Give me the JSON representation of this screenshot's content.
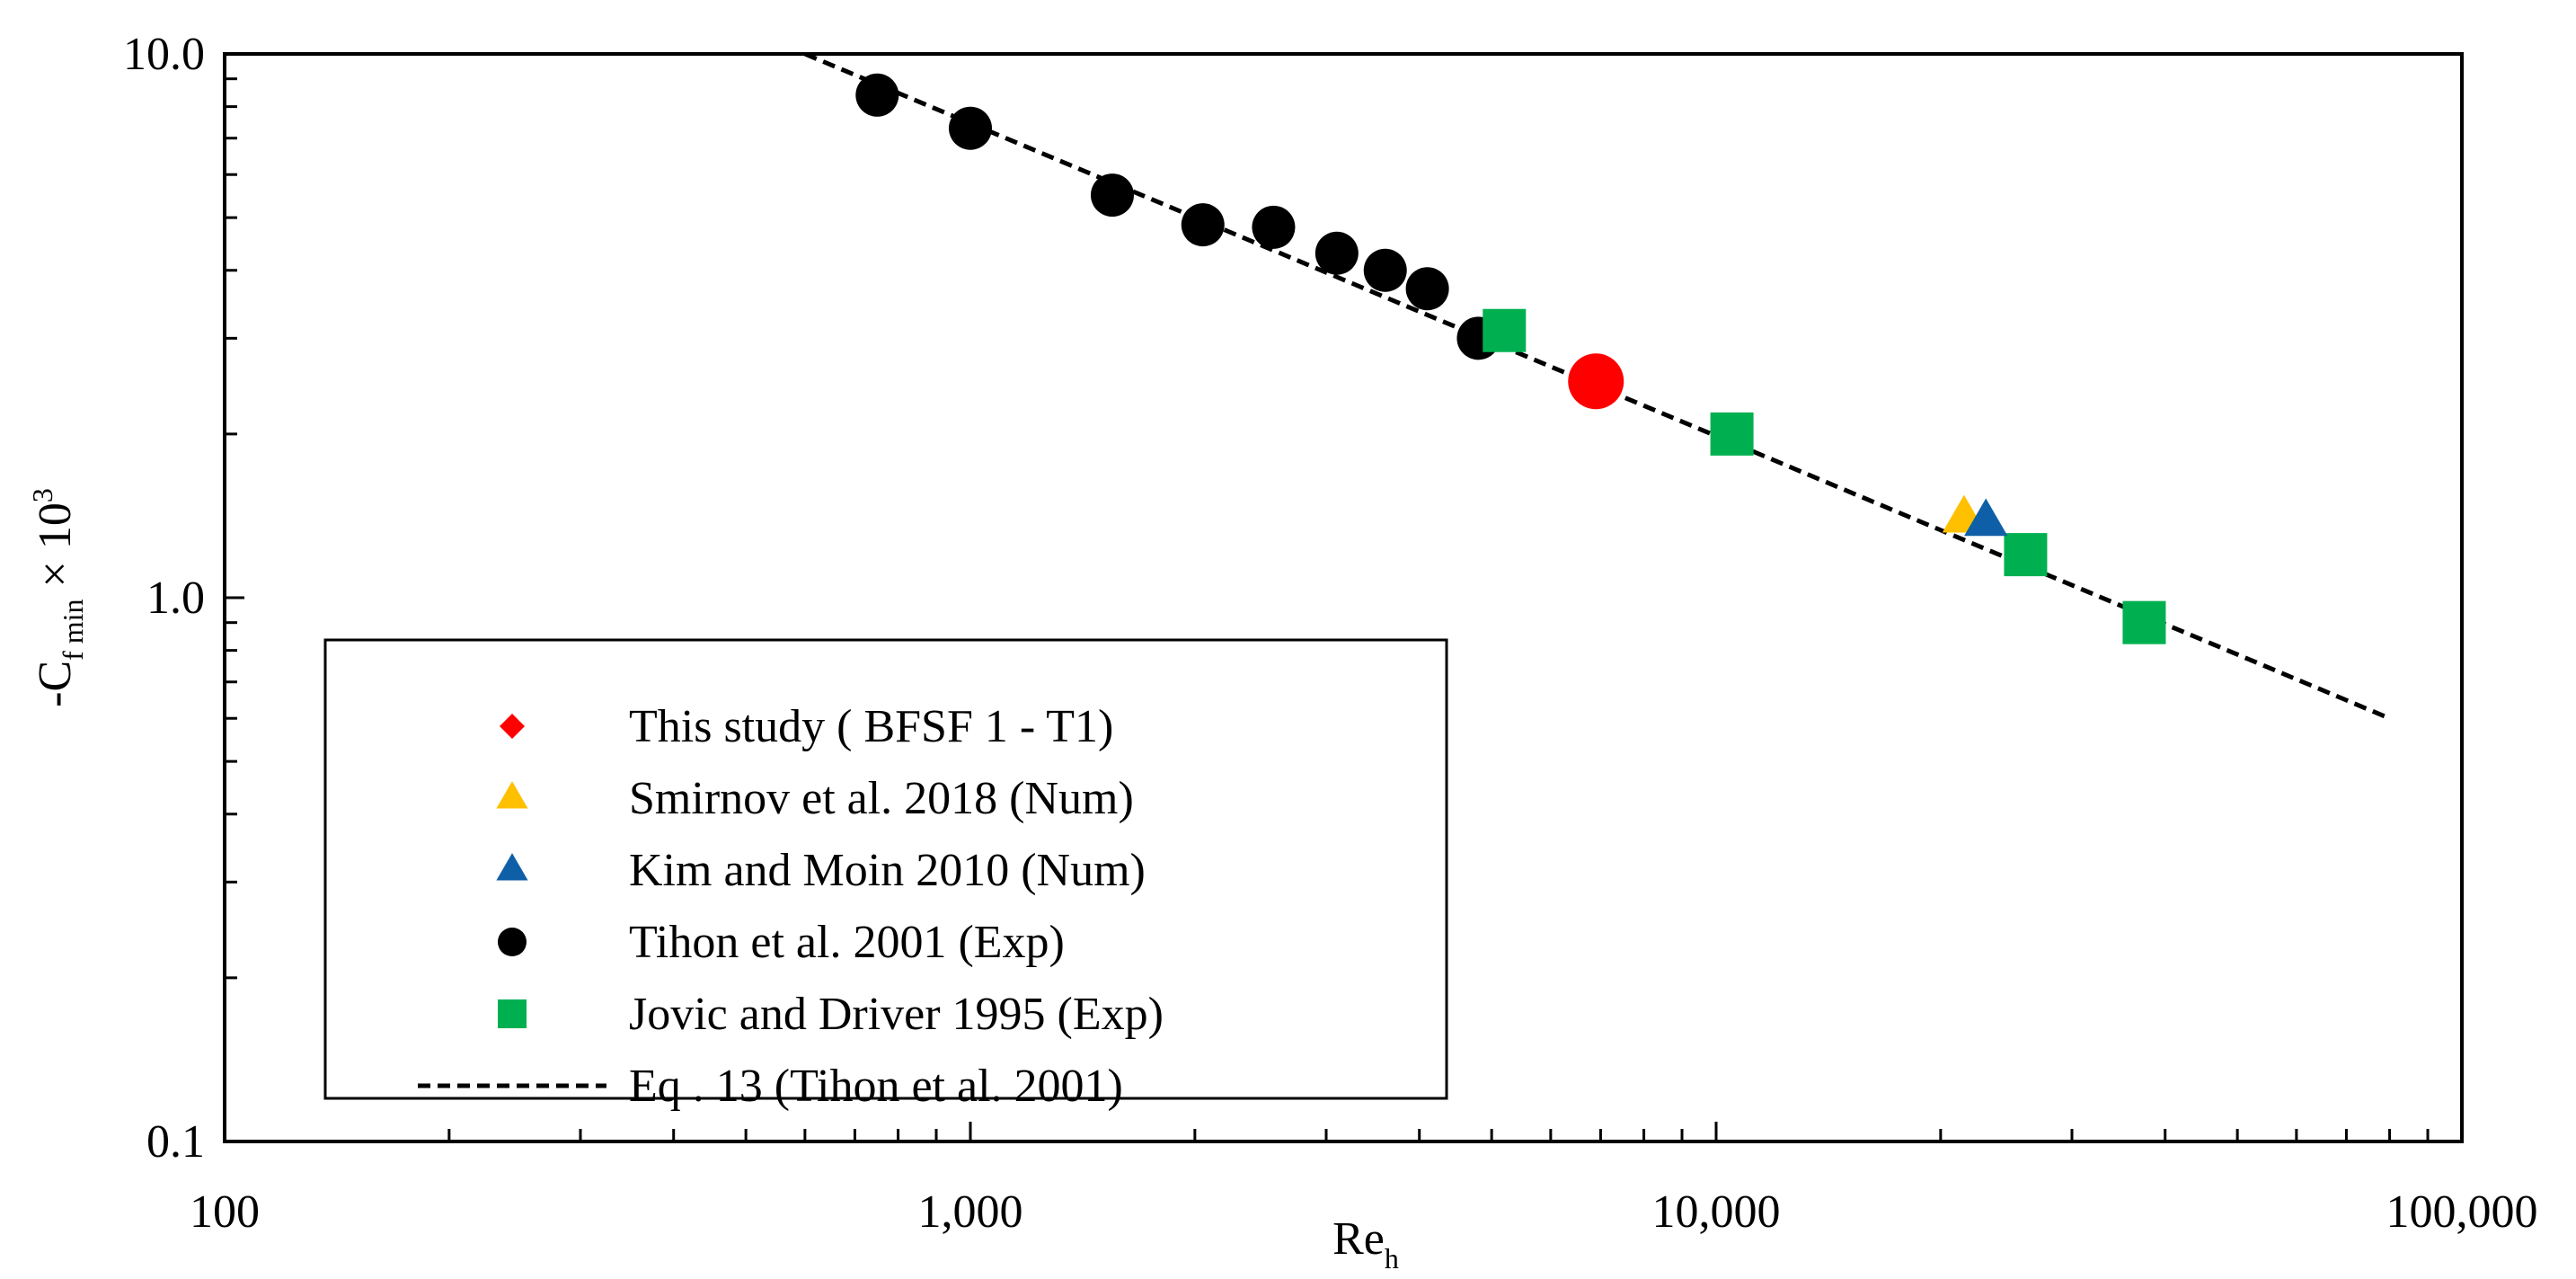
{
  "chart_data": {
    "type": "scatter",
    "x_scale": "log",
    "y_scale": "log",
    "xlim": [
      100,
      100000
    ],
    "ylim": [
      0.1,
      10
    ],
    "x_ticks": [
      {
        "value": 100,
        "label": "100"
      },
      {
        "value": 1000,
        "label": "1,000"
      },
      {
        "value": 10000,
        "label": "10,000"
      },
      {
        "value": 100000,
        "label": "100,000"
      }
    ],
    "y_ticks": [
      {
        "value": 0.1,
        "label": "0.1"
      },
      {
        "value": 1,
        "label": "1.0"
      },
      {
        "value": 10,
        "label": "10.0"
      }
    ],
    "xlabel": {
      "main": "Re",
      "sub": "h"
    },
    "ylabel": {
      "prefix": "-C",
      "sub": "f min",
      "times": " × 10",
      "sup": "3"
    },
    "grid": false,
    "legend_position": "bottom-left",
    "series": [
      {
        "name": "This study ( BFSF 1 - T1)",
        "marker": "circle",
        "legend_marker": "diamond",
        "color": "#ff0000",
        "size": "large",
        "points": [
          [
            6900,
            2.5
          ]
        ]
      },
      {
        "name": "Smirnov et al. 2018 (Num)",
        "marker": "triangle",
        "color": "#ffc000",
        "size": "small",
        "points": [
          [
            21500,
            1.4
          ]
        ]
      },
      {
        "name": "Kim and Moin 2010 (Num)",
        "marker": "triangle",
        "color": "#0f5fa8",
        "size": "small",
        "points": [
          [
            23000,
            1.38
          ]
        ]
      },
      {
        "name": "Tihon et al. 2001 (Exp)",
        "marker": "circle",
        "color": "#000000",
        "size": "medium",
        "points": [
          [
            750,
            8.4
          ],
          [
            1000,
            7.3
          ],
          [
            1550,
            5.5
          ],
          [
            2050,
            4.85
          ],
          [
            2550,
            4.8
          ],
          [
            3100,
            4.3
          ],
          [
            3600,
            4.0
          ],
          [
            4100,
            3.7
          ],
          [
            4800,
            3.0
          ]
        ]
      },
      {
        "name": "Jovic and Driver 1995 (Exp)",
        "marker": "square",
        "color": "#00b050",
        "size": "medium",
        "points": [
          [
            5200,
            3.1
          ],
          [
            10500,
            2.0
          ],
          [
            26000,
            1.2
          ],
          [
            37500,
            0.9
          ]
        ]
      },
      {
        "name": "Eq . 13 (Tihon et al. 2001)",
        "marker": "line",
        "style": "dashed",
        "color": "#000000",
        "points": [
          [
            600,
            10.0
          ],
          [
            80000,
            0.6
          ]
        ]
      }
    ]
  }
}
